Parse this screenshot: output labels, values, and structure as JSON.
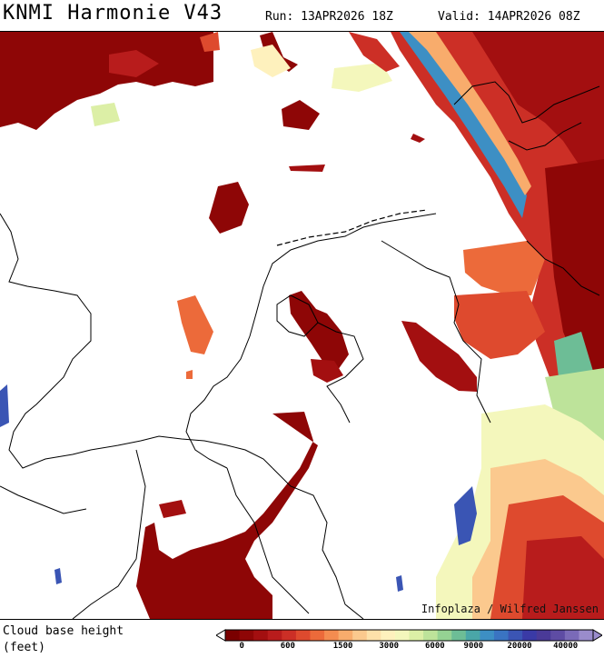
{
  "header": {
    "title": "KNMI Harmonie V43",
    "run": "Run: 13APR2026 18Z",
    "valid": "Valid: 14APR2026 08Z"
  },
  "map": {
    "credit": "Infoplaza / Wilfred Janssen",
    "coastline_color": "#000000"
  },
  "legend": {
    "title_line1": "Cloud base height",
    "title_line2": "(feet)",
    "colors": [
      "#7a0000",
      "#8e0606",
      "#a30f10",
      "#b81c1c",
      "#cc2f26",
      "#de4a2e",
      "#ec6a3a",
      "#f48c50",
      "#f8ac6c",
      "#fbc98e",
      "#fde1aa",
      "#fef1bd",
      "#f4f7bc",
      "#dcefa6",
      "#bde39a",
      "#95d293",
      "#6dbd96",
      "#4aa6a8",
      "#3d8fc4",
      "#3a74c2",
      "#3b55b4",
      "#3a3aa6",
      "#4a3a98",
      "#5e4ca4",
      "#7a6ab8",
      "#9a8ccc"
    ],
    "ticks": [
      {
        "label": "0",
        "pos": 0.045
      },
      {
        "label": "600",
        "pos": 0.17
      },
      {
        "label": "1500",
        "pos": 0.32
      },
      {
        "label": "3000",
        "pos": 0.445
      },
      {
        "label": "6000",
        "pos": 0.57
      },
      {
        "label": "9000",
        "pos": 0.675
      },
      {
        "label": "20000",
        "pos": 0.8
      },
      {
        "label": "40000",
        "pos": 0.925
      }
    ]
  }
}
